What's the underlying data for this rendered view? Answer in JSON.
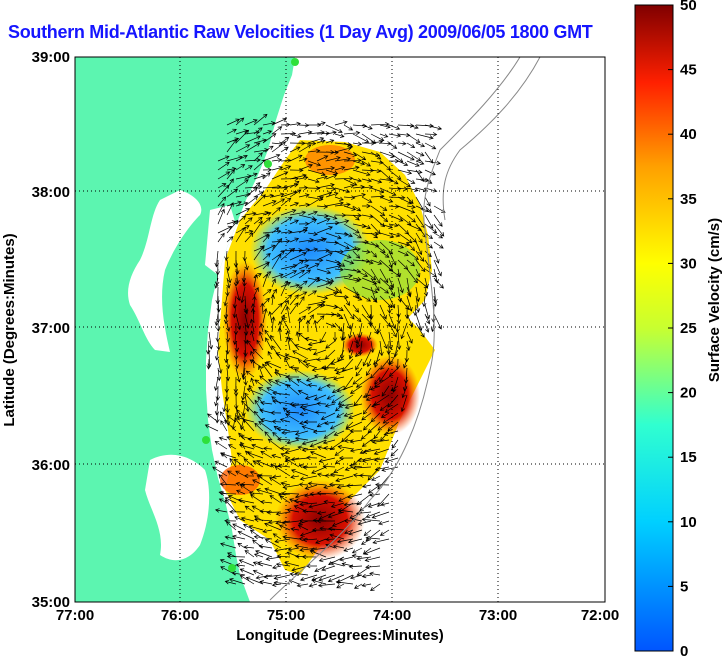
{
  "title": "Southern Mid-Atlantic Raw Velocities (1 Day Avg) 2009/06/05 1800 GMT",
  "map": {
    "x_axis": {
      "label": "Longitude (Degrees:Minutes)",
      "ticks": [
        "77:00",
        "76:00",
        "75:00",
        "74:00",
        "73:00",
        "72:00"
      ]
    },
    "y_axis": {
      "label": "Latitude (Degrees:Minutes)",
      "ticks": [
        "39:00",
        "38:00",
        "37:00",
        "36:00",
        "35:00"
      ]
    },
    "land_color": "#5cf5b0",
    "water_color": "#ffffff",
    "grid": "dotted"
  },
  "colorbar": {
    "label": "Surface Velocity (cm/s)",
    "ticks": [
      "50",
      "45",
      "40",
      "35",
      "30",
      "25",
      "20",
      "15",
      "10",
      "5",
      "0"
    ],
    "range": [
      0,
      50
    ],
    "colormap": "jet"
  }
}
